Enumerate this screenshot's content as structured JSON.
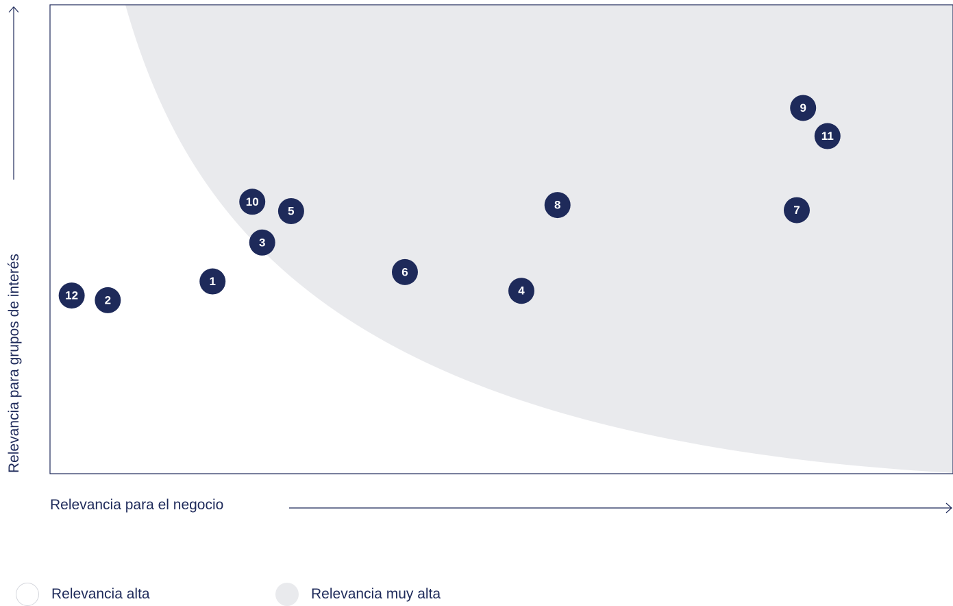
{
  "chart_data": {
    "type": "scatter",
    "title": "",
    "xlabel": "Relevancia para el negocio",
    "ylabel": "Relevancia para grupos de interés",
    "xlim": [
      0,
      100
    ],
    "ylim": [
      0,
      100
    ],
    "grid": false,
    "legend_position": "bottom-left",
    "points": [
      {
        "label": "1",
        "x": 18.0,
        "y": 41.0
      },
      {
        "label": "2",
        "x": 6.4,
        "y": 37.0
      },
      {
        "label": "3",
        "x": 23.5,
        "y": 49.3
      },
      {
        "label": "4",
        "x": 52.2,
        "y": 39.0
      },
      {
        "label": "5",
        "x": 26.7,
        "y": 56.0
      },
      {
        "label": "6",
        "x": 39.3,
        "y": 43.0
      },
      {
        "label": "7",
        "x": 82.7,
        "y": 56.2
      },
      {
        "label": "8",
        "x": 56.2,
        "y": 57.3
      },
      {
        "label": "9",
        "x": 83.4,
        "y": 78.0
      },
      {
        "label": "10",
        "x": 22.4,
        "y": 58.0
      },
      {
        "label": "11",
        "x": 86.1,
        "y": 72.0
      },
      {
        "label": "12",
        "x": 2.4,
        "y": 38.0
      }
    ],
    "legend": [
      {
        "name": "Relevancia alta",
        "color": "#ffffff"
      },
      {
        "name": "Relevancia muy alta",
        "color": "#e9eaed"
      }
    ]
  },
  "colors": {
    "point_fill": "#1e2a5a",
    "region_fill": "#e9eaed",
    "axis": "#1e2a5a"
  }
}
